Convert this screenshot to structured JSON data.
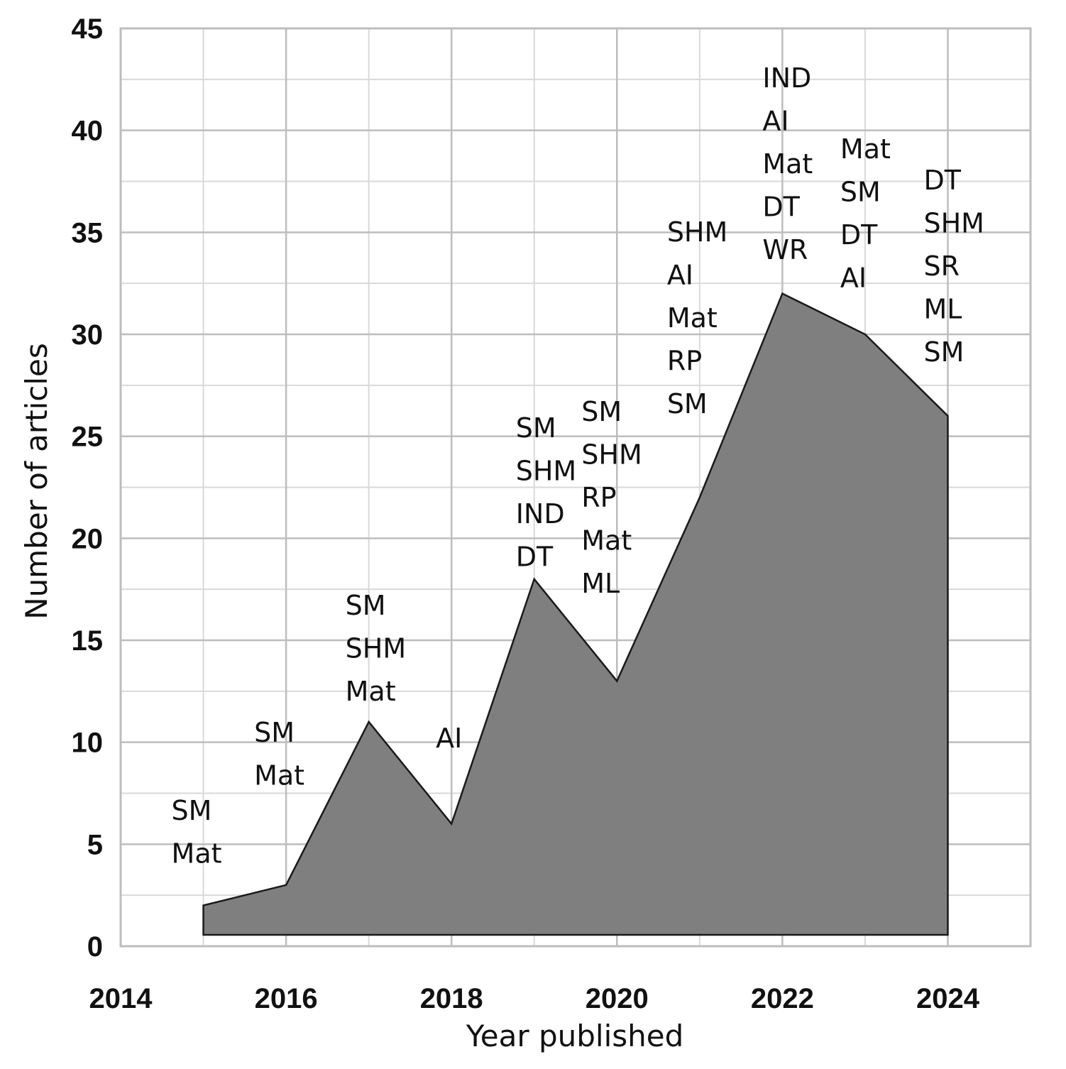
{
  "chart_data": {
    "type": "area",
    "xlabel": "Year published",
    "ylabel": "Number of articles",
    "xlim": [
      2014,
      2025
    ],
    "ylim": [
      0,
      45
    ],
    "x_ticks": [
      2014,
      2016,
      2018,
      2020,
      2022,
      2024
    ],
    "y_ticks": [
      0,
      5,
      10,
      15,
      20,
      25,
      30,
      35,
      40,
      45
    ],
    "grid": true,
    "fill_color": "#7f7f7f",
    "series": [
      {
        "x": [
          2015,
          2016,
          2017,
          2018,
          2019,
          2020,
          2021,
          2022,
          2023,
          2024
        ],
        "values": [
          2,
          3,
          11,
          6,
          18,
          13,
          22,
          32,
          30,
          26
        ]
      }
    ],
    "annotations": [
      {
        "x": 2015,
        "labels": [
          "SM",
          "Mat"
        ]
      },
      {
        "x": 2016,
        "labels": [
          "SM",
          "Mat"
        ]
      },
      {
        "x": 2017,
        "labels": [
          "SM",
          "SHM",
          "Mat"
        ]
      },
      {
        "x": 2018,
        "labels": [
          "AI"
        ]
      },
      {
        "x": 2019,
        "labels": [
          "SM",
          "SHM",
          "IND",
          "DT"
        ]
      },
      {
        "x": 2020,
        "labels": [
          "SM",
          "SHM",
          "RP",
          "Mat",
          "ML"
        ]
      },
      {
        "x": 2021,
        "labels": [
          "SHM",
          "AI",
          "Mat",
          "RP",
          "SM"
        ]
      },
      {
        "x": 2022,
        "labels": [
          "IND",
          "AI",
          "Mat",
          "DT",
          "WR"
        ]
      },
      {
        "x": 2023,
        "labels": [
          "Mat",
          "SM",
          "DT",
          "AI"
        ]
      },
      {
        "x": 2024,
        "labels": [
          "DT",
          "SHM",
          "SR",
          "ML",
          "SM"
        ]
      }
    ]
  }
}
